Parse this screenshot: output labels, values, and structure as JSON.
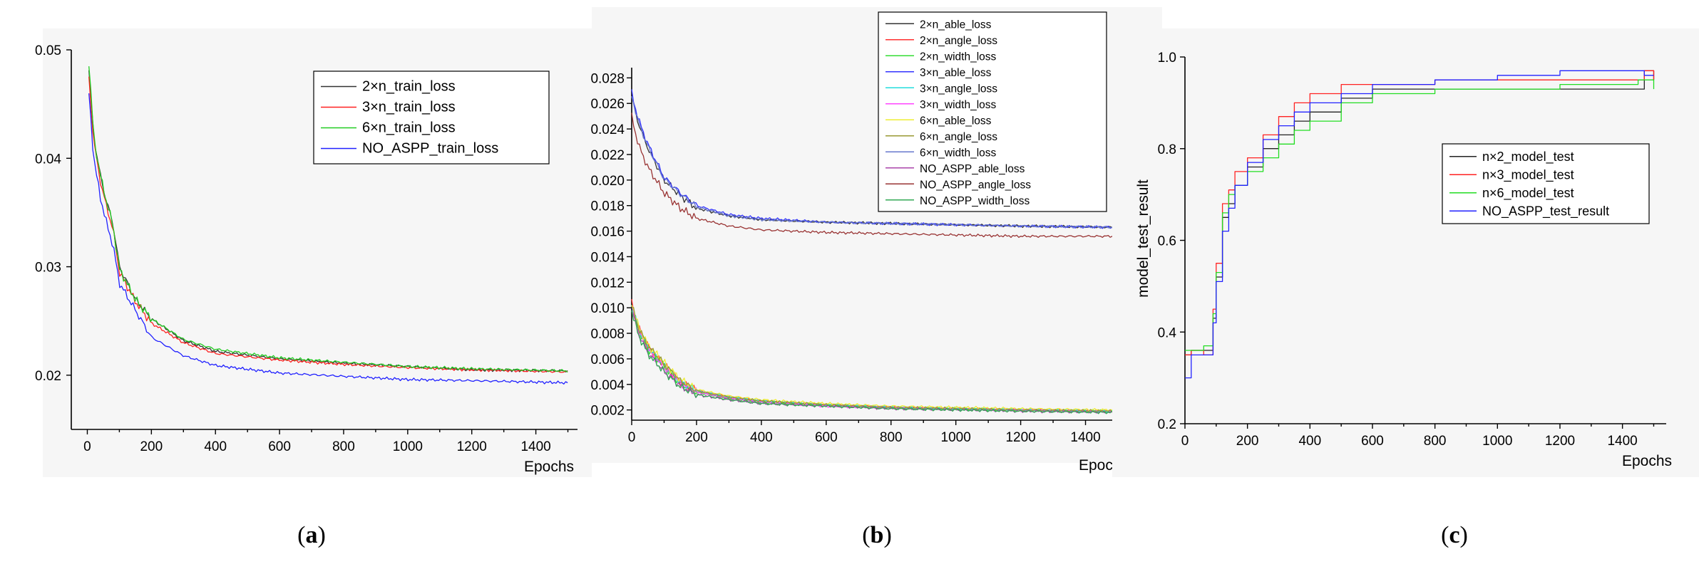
{
  "figure": {
    "captions": [
      "(a)",
      "(b)",
      "(c)"
    ]
  },
  "chart_data": [
    {
      "type": "line",
      "panel": "a",
      "xlabel": "Epochs",
      "ylabel": "",
      "xlim": [
        -50,
        1530
      ],
      "ylim": [
        0.015,
        0.05
      ],
      "xticks": [
        0,
        200,
        400,
        600,
        800,
        1000,
        1200,
        1400
      ],
      "yticks": [
        0.02,
        0.03,
        0.04,
        0.05
      ],
      "ytick_labels": [
        "0.02",
        "0.03",
        "0.04",
        "0.05"
      ],
      "legend_position": "top-right",
      "series": [
        {
          "name": "2×n_train_loss",
          "color": "#333333",
          "x": [
            5,
            20,
            40,
            60,
            80,
            100,
            150,
            200,
            300,
            400,
            600,
            800,
            1000,
            1200,
            1500
          ],
          "y": [
            0.048,
            0.042,
            0.0385,
            0.036,
            0.034,
            0.03,
            0.027,
            0.0252,
            0.0232,
            0.0222,
            0.0215,
            0.0211,
            0.0208,
            0.0205,
            0.0204
          ]
        },
        {
          "name": "3×n_train_loss",
          "color": "#ff2020",
          "x": [
            5,
            20,
            40,
            60,
            80,
            100,
            150,
            200,
            300,
            400,
            600,
            800,
            1000,
            1200,
            1500
          ],
          "y": [
            0.0475,
            0.0415,
            0.038,
            0.0355,
            0.0335,
            0.0295,
            0.0268,
            0.0248,
            0.023,
            0.022,
            0.0214,
            0.021,
            0.0207,
            0.0205,
            0.0203
          ]
        },
        {
          "name": "6×n_train_loss",
          "color": "#22cc22",
          "x": [
            5,
            20,
            40,
            60,
            80,
            100,
            150,
            200,
            300,
            400,
            600,
            800,
            1000,
            1200,
            1500
          ],
          "y": [
            0.0488,
            0.042,
            0.0385,
            0.036,
            0.0338,
            0.0298,
            0.027,
            0.0252,
            0.0233,
            0.0224,
            0.0216,
            0.0212,
            0.0208,
            0.0206,
            0.0204
          ]
        },
        {
          "name": "NO_ASPP_train_loss",
          "color": "#2020ff",
          "x": [
            5,
            20,
            40,
            60,
            80,
            100,
            150,
            200,
            300,
            400,
            600,
            800,
            1000,
            1200,
            1500
          ],
          "y": [
            0.046,
            0.04,
            0.0365,
            0.034,
            0.032,
            0.0285,
            0.026,
            0.0235,
            0.0218,
            0.0209,
            0.0202,
            0.0199,
            0.0196,
            0.0195,
            0.0193
          ]
        }
      ]
    },
    {
      "type": "line",
      "panel": "b",
      "xlabel": "Epochs",
      "ylabel": "",
      "xlim": [
        0,
        1500
      ],
      "ylim": [
        0.0012,
        0.0288
      ],
      "xticks": [
        0,
        200,
        400,
        600,
        800,
        1000,
        1200,
        1400
      ],
      "yticks": [
        0.002,
        0.004,
        0.006,
        0.008,
        0.01,
        0.012,
        0.014,
        0.016,
        0.018,
        0.02,
        0.022,
        0.024,
        0.026,
        0.028
      ],
      "ytick_labels": [
        "0.002",
        "0.004",
        "0.006",
        "0.008",
        "0.010",
        "0.012",
        "0.014",
        "0.016",
        "0.018",
        "0.020",
        "0.022",
        "0.024",
        "0.026",
        "0.028"
      ],
      "legend_position": "top",
      "series": [
        {
          "name": "2×n_able_loss",
          "color": "#333333",
          "x": [
            0,
            20,
            50,
            100,
            150,
            200,
            300,
            400,
            600,
            800,
            1000,
            1200,
            1500
          ],
          "y": [
            0.0265,
            0.0245,
            0.0225,
            0.02,
            0.0188,
            0.0178,
            0.0172,
            0.0169,
            0.0167,
            0.0166,
            0.0165,
            0.0164,
            0.0163
          ]
        },
        {
          "name": "2×n_angle_loss",
          "color": "#ff3030",
          "x": [
            0,
            20,
            50,
            100,
            150,
            200,
            300,
            400,
            600,
            800,
            1000,
            1200,
            1500
          ],
          "y": [
            0.0105,
            0.0085,
            0.007,
            0.0055,
            0.0042,
            0.0035,
            0.003,
            0.0027,
            0.0024,
            0.0022,
            0.0021,
            0.002,
            0.0019
          ]
        },
        {
          "name": "2×n_width_loss",
          "color": "#33dd33",
          "x": [
            0,
            20,
            50,
            100,
            150,
            200,
            300,
            400,
            600,
            800,
            1000,
            1200,
            1500
          ],
          "y": [
            0.0102,
            0.0083,
            0.0068,
            0.0054,
            0.0041,
            0.0034,
            0.0029,
            0.0026,
            0.0024,
            0.0022,
            0.0021,
            0.002,
            0.0019
          ]
        },
        {
          "name": "3×n_able_loss",
          "color": "#3333ff",
          "x": [
            0,
            20,
            50,
            100,
            150,
            200,
            300,
            400,
            600,
            800,
            1000,
            1200,
            1500
          ],
          "y": [
            0.0268,
            0.0248,
            0.0228,
            0.0202,
            0.019,
            0.018,
            0.0173,
            0.017,
            0.0167,
            0.0166,
            0.0165,
            0.0164,
            0.0163
          ]
        },
        {
          "name": "3×n_angle_loss",
          "color": "#22dddd",
          "x": [
            0,
            20,
            50,
            100,
            150,
            200,
            300,
            400,
            600,
            800,
            1000,
            1200,
            1500
          ],
          "y": [
            0.0103,
            0.0084,
            0.0069,
            0.0055,
            0.0042,
            0.0035,
            0.003,
            0.0027,
            0.0024,
            0.0022,
            0.0021,
            0.002,
            0.0019
          ]
        },
        {
          "name": "3×n_width_loss",
          "color": "#ff44ff",
          "x": [
            0,
            20,
            50,
            100,
            150,
            200,
            300,
            400,
            600,
            800,
            1000,
            1200,
            1500
          ],
          "y": [
            0.0101,
            0.0082,
            0.0067,
            0.0053,
            0.0041,
            0.0034,
            0.0029,
            0.0026,
            0.0023,
            0.0022,
            0.0021,
            0.002,
            0.0019
          ]
        },
        {
          "name": "6×n_able_loss",
          "color": "#eeee33",
          "x": [
            0,
            20,
            50,
            100,
            150,
            200,
            300,
            400,
            600,
            800,
            1000,
            1200,
            1500
          ],
          "y": [
            0.0104,
            0.0086,
            0.0071,
            0.0057,
            0.0044,
            0.0036,
            0.0031,
            0.0028,
            0.0025,
            0.0023,
            0.0022,
            0.0021,
            0.002
          ]
        },
        {
          "name": "6×n_angle_loss",
          "color": "#999933",
          "x": [
            0,
            20,
            50,
            100,
            150,
            200,
            300,
            400,
            600,
            800,
            1000,
            1200,
            1500
          ],
          "y": [
            0.0102,
            0.0085,
            0.007,
            0.0056,
            0.0043,
            0.0035,
            0.003,
            0.0027,
            0.0024,
            0.0022,
            0.0021,
            0.002,
            0.0019
          ]
        },
        {
          "name": "6×n_width_loss",
          "color": "#6677cc",
          "x": [
            0,
            20,
            50,
            100,
            150,
            200,
            300,
            400,
            600,
            800,
            1000,
            1200,
            1500
          ],
          "y": [
            0.0266,
            0.0246,
            0.0226,
            0.0201,
            0.0189,
            0.0179,
            0.0172,
            0.0169,
            0.0167,
            0.0166,
            0.0165,
            0.0164,
            0.0163
          ]
        },
        {
          "name": "NO_ASPP_able_loss",
          "color": "#aa44aa",
          "x": [
            0,
            20,
            50,
            100,
            150,
            200,
            300,
            400,
            600,
            800,
            1000,
            1200,
            1500
          ],
          "y": [
            0.0099,
            0.008,
            0.0065,
            0.005,
            0.0039,
            0.0032,
            0.0028,
            0.0025,
            0.0023,
            0.0021,
            0.002,
            0.0019,
            0.0018
          ]
        },
        {
          "name": "NO_ASPP_angle_loss",
          "color": "#993333",
          "x": [
            0,
            20,
            50,
            100,
            150,
            200,
            300,
            400,
            600,
            800,
            1000,
            1200,
            1500
          ],
          "y": [
            0.025,
            0.0228,
            0.021,
            0.019,
            0.0178,
            0.017,
            0.0164,
            0.0161,
            0.0159,
            0.0158,
            0.0157,
            0.0156,
            0.0156
          ]
        },
        {
          "name": "NO_ASPP_width_loss",
          "color": "#33aa55",
          "x": [
            0,
            20,
            50,
            100,
            150,
            200,
            300,
            400,
            600,
            800,
            1000,
            1200,
            1500
          ],
          "y": [
            0.0098,
            0.0079,
            0.0064,
            0.005,
            0.0038,
            0.0032,
            0.0028,
            0.0025,
            0.0023,
            0.0021,
            0.002,
            0.0019,
            0.0018
          ]
        }
      ]
    },
    {
      "type": "line",
      "panel": "c",
      "xlabel": "Epochs",
      "ylabel": "model_test_result",
      "xlim": [
        0,
        1540
      ],
      "ylim": [
        0.2,
        1.0
      ],
      "xticks": [
        0,
        200,
        400,
        600,
        800,
        1000,
        1200,
        1400
      ],
      "yticks": [
        0.2,
        0.4,
        0.6,
        0.8,
        1.0
      ],
      "ytick_labels": [
        "0.2",
        "0.4",
        "0.6",
        "0.8",
        "1.0"
      ],
      "legend_position": "right",
      "series": [
        {
          "name": "n×2_model_test",
          "color": "#222222",
          "x": [
            0,
            20,
            60,
            90,
            100,
            120,
            140,
            160,
            200,
            250,
            300,
            350,
            400,
            500,
            600,
            800,
            1000,
            1200,
            1450,
            1470,
            1500
          ],
          "y": [
            0.35,
            0.36,
            0.36,
            0.43,
            0.52,
            0.65,
            0.68,
            0.72,
            0.76,
            0.8,
            0.83,
            0.86,
            0.88,
            0.91,
            0.93,
            0.93,
            0.93,
            0.93,
            0.93,
            0.97,
            0.95
          ]
        },
        {
          "name": "n×3_model_test",
          "color": "#ff2222",
          "x": [
            0,
            20,
            60,
            90,
            100,
            120,
            140,
            160,
            200,
            250,
            300,
            350,
            400,
            500,
            600,
            800,
            1000,
            1200,
            1450,
            1470,
            1500
          ],
          "y": [
            0.35,
            0.36,
            0.35,
            0.45,
            0.55,
            0.68,
            0.71,
            0.75,
            0.78,
            0.83,
            0.87,
            0.9,
            0.92,
            0.94,
            0.94,
            0.95,
            0.95,
            0.95,
            0.95,
            0.97,
            0.95
          ]
        },
        {
          "name": "n×6_model_test",
          "color": "#22dd22",
          "x": [
            0,
            20,
            60,
            90,
            100,
            120,
            140,
            160,
            200,
            250,
            300,
            350,
            400,
            500,
            600,
            800,
            1000,
            1200,
            1450,
            1470,
            1500
          ],
          "y": [
            0.36,
            0.36,
            0.37,
            0.44,
            0.53,
            0.66,
            0.7,
            0.72,
            0.75,
            0.78,
            0.81,
            0.84,
            0.86,
            0.9,
            0.92,
            0.93,
            0.93,
            0.94,
            0.95,
            0.95,
            0.93
          ]
        },
        {
          "name": "NO_ASPP_test_result",
          "color": "#2222ff",
          "x": [
            0,
            20,
            60,
            90,
            100,
            120,
            140,
            160,
            200,
            250,
            300,
            350,
            400,
            500,
            600,
            800,
            1000,
            1200,
            1450,
            1470,
            1500
          ],
          "y": [
            0.3,
            0.35,
            0.35,
            0.42,
            0.51,
            0.62,
            0.67,
            0.72,
            0.77,
            0.82,
            0.85,
            0.88,
            0.9,
            0.92,
            0.94,
            0.95,
            0.96,
            0.97,
            0.97,
            0.96,
            0.96
          ]
        }
      ]
    }
  ]
}
